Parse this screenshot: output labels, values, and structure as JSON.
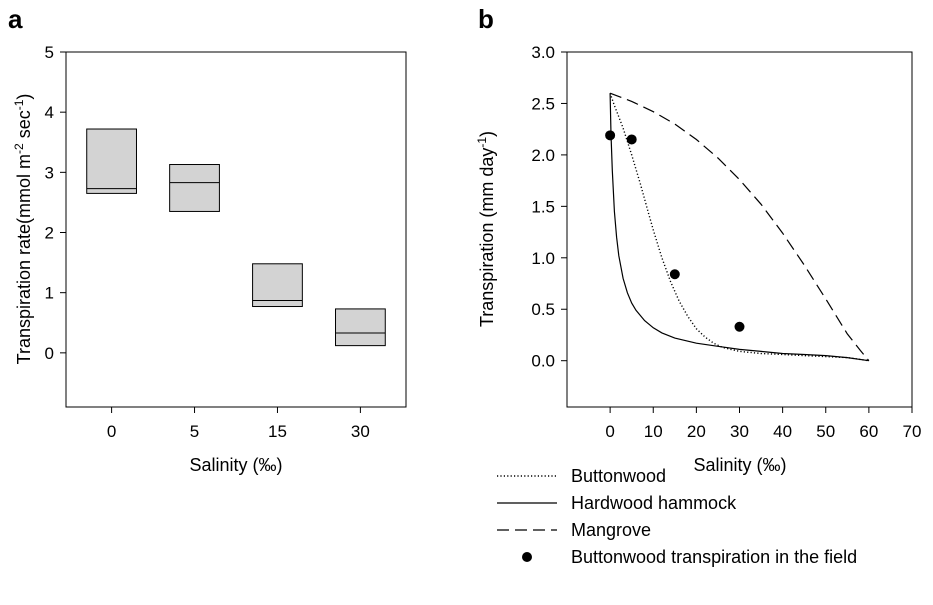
{
  "chart_data": [
    {
      "panel_label": "a",
      "type": "box",
      "xlabel": "Salinity (‰)",
      "ylabel": "Transpiration rate(mmol m",
      "ylabel_sup1": "-2",
      "ylabel_mid": " sec",
      "ylabel_sup2": "-1",
      "ylabel_end": ")",
      "ylim": [
        -0.9,
        5
      ],
      "yticks": [
        "0",
        "1",
        "2",
        "3",
        "4",
        "5"
      ],
      "categories": [
        "0",
        "5",
        "15",
        "30"
      ],
      "boxes": [
        {
          "category": "0",
          "q1": 2.65,
          "median": 2.73,
          "q3": 3.72
        },
        {
          "category": "5",
          "q1": 2.35,
          "median": 2.83,
          "q3": 3.13
        },
        {
          "category": "15",
          "q1": 0.77,
          "median": 0.87,
          "q3": 1.48
        },
        {
          "category": "30",
          "q1": 0.12,
          "median": 0.33,
          "q3": 0.73
        }
      ],
      "box_color": "#d3d3d3"
    },
    {
      "panel_label": "b",
      "type": "line",
      "xlabel": "Salinity (‰)",
      "ylabel": "Transpiration (mm day",
      "ylabel_sup": "-1",
      "ylabel_end": ")",
      "xlim": [
        -10,
        70
      ],
      "ylim": [
        -0.45,
        3.0
      ],
      "xticks": [
        "0",
        "10",
        "20",
        "30",
        "40",
        "50",
        "60",
        "70"
      ],
      "yticks": [
        "0.0",
        "0.5",
        "1.0",
        "1.5",
        "2.0",
        "2.5",
        "3.0"
      ],
      "series": [
        {
          "name": "Buttonwood",
          "style": "dotted",
          "x": [
            0,
            1,
            2,
            3,
            4,
            5,
            6,
            7,
            8,
            9,
            10,
            12,
            14,
            16,
            18,
            20,
            22,
            24,
            26,
            28,
            30,
            35,
            40,
            45,
            50,
            55,
            60
          ],
          "y": [
            2.6,
            2.48,
            2.37,
            2.26,
            2.13,
            2.0,
            1.86,
            1.72,
            1.57,
            1.42,
            1.27,
            1.0,
            0.77,
            0.58,
            0.43,
            0.31,
            0.23,
            0.17,
            0.13,
            0.11,
            0.09,
            0.07,
            0.06,
            0.05,
            0.04,
            0.03,
            0.0
          ]
        },
        {
          "name": "Hardwood hammock",
          "style": "solid",
          "x": [
            0,
            0.2,
            0.5,
            1,
            1.5,
            2,
            3,
            4,
            5,
            6,
            8,
            10,
            12,
            15,
            20,
            25,
            30,
            35,
            40,
            45,
            50,
            55,
            60
          ],
          "y": [
            2.6,
            2.2,
            1.85,
            1.45,
            1.2,
            1.02,
            0.8,
            0.66,
            0.56,
            0.49,
            0.39,
            0.32,
            0.27,
            0.22,
            0.17,
            0.14,
            0.11,
            0.09,
            0.07,
            0.06,
            0.05,
            0.03,
            0.0
          ]
        },
        {
          "name": "Mangrove",
          "style": "dashed",
          "x": [
            0,
            5,
            10,
            15,
            20,
            25,
            30,
            35,
            40,
            45,
            50,
            55,
            58,
            60
          ],
          "y": [
            2.6,
            2.52,
            2.42,
            2.3,
            2.15,
            1.97,
            1.76,
            1.52,
            1.24,
            0.93,
            0.6,
            0.26,
            0.1,
            0.0
          ]
        }
      ],
      "points": {
        "name": "Buttonwood transpiration in the field",
        "x": [
          0,
          5,
          15,
          30
        ],
        "y": [
          2.19,
          2.15,
          0.84,
          0.33
        ]
      }
    }
  ]
}
